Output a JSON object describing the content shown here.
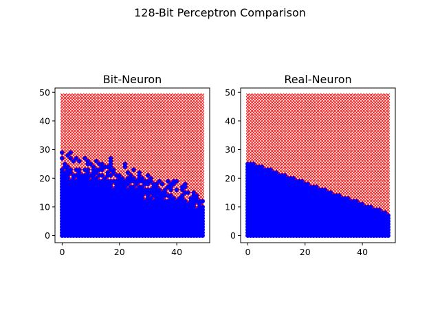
{
  "figure": {
    "title": "128-Bit Perceptron Comparison"
  },
  "chart_data": [
    {
      "type": "scatter",
      "title": "Bit-Neuron",
      "xlabel": "",
      "ylabel": "",
      "xlim": [
        -2.5,
        51.5
      ],
      "ylim": [
        -2.5,
        51.5
      ],
      "xticks": [
        0,
        20,
        40
      ],
      "yticks": [
        0,
        10,
        20,
        30,
        40,
        50
      ],
      "grid": false,
      "legend": "none",
      "grid_points": {
        "x_range": [
          0,
          49
        ],
        "y_range": [
          0,
          49
        ],
        "step": 1
      },
      "series": [
        {
          "marker": "o",
          "color": "#0000ff",
          "region": "below noisy decision boundary",
          "boundary_x": [
            0,
            5,
            10,
            15,
            20,
            25,
            30,
            35,
            40,
            45,
            49
          ],
          "boundary_y": [
            24,
            24,
            23,
            22,
            21,
            19,
            17,
            16,
            15,
            13,
            11
          ]
        },
        {
          "marker": "x",
          "color": "#ff0000",
          "region": "above decision boundary"
        }
      ]
    },
    {
      "type": "scatter",
      "title": "Real-Neuron",
      "xlabel": "",
      "ylabel": "",
      "xlim": [
        -2.5,
        51.5
      ],
      "ylim": [
        -2.5,
        51.5
      ],
      "xticks": [
        0,
        20,
        40
      ],
      "yticks": [
        0,
        10,
        20,
        30,
        40,
        50
      ],
      "grid": false,
      "legend": "none",
      "grid_points": {
        "x_range": [
          0,
          49
        ],
        "y_range": [
          0,
          49
        ],
        "step": 1
      },
      "series": [
        {
          "marker": "o",
          "color": "#0000ff",
          "region": "below linear decision boundary",
          "boundary_x": [
            0,
            49
          ],
          "boundary_y": [
            26,
            8
          ]
        },
        {
          "marker": "x",
          "color": "#ff0000",
          "region": "above decision boundary"
        }
      ]
    }
  ]
}
